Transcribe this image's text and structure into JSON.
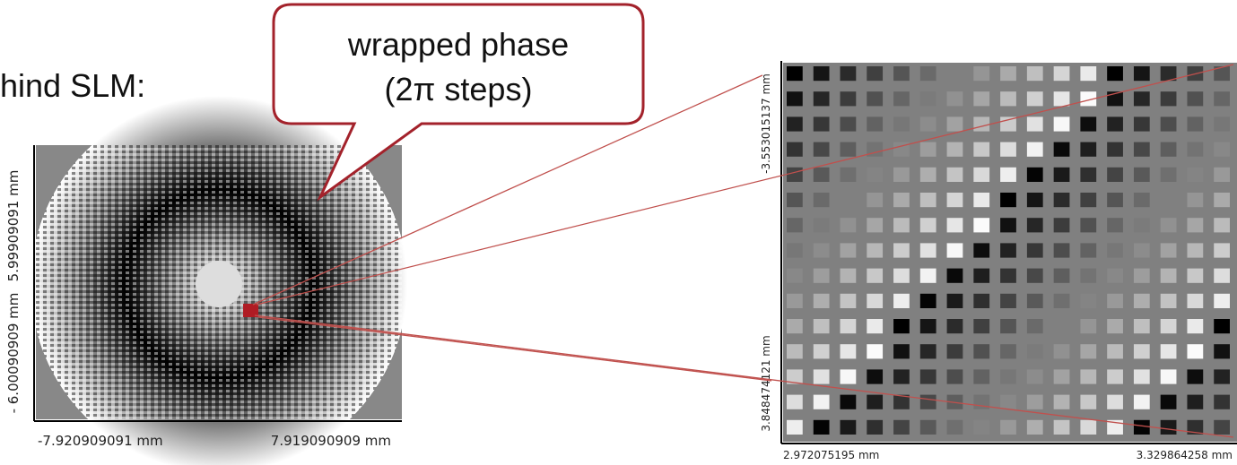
{
  "slide": {
    "text": "hind SLM:",
    "callout": {
      "line1": "wrapped phase",
      "line2": "(2π steps)"
    },
    "left_image": {
      "y_top_label": "5.99909091 mm",
      "y_bottom_label": "- 6.00090909 mm",
      "x_left_label": "-7.920909091 mm",
      "x_right_label": "7.919090909 mm"
    },
    "right_image": {
      "y_top_label": "-3.553015137 mm",
      "y_bottom_label": "3.848474121 mm",
      "x_left_label": "2.972075195 mm",
      "x_right_label": "3.329864258 mm"
    }
  }
}
